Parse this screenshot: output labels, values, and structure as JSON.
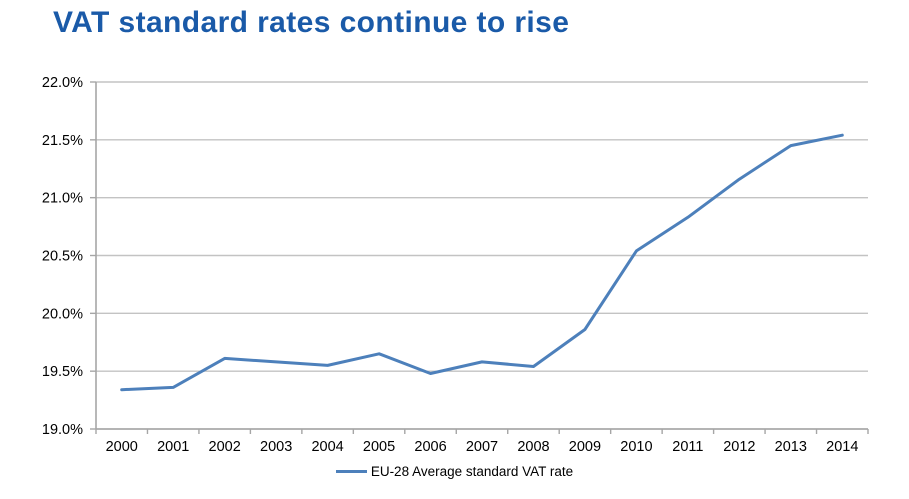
{
  "page": {
    "title": "VAT standard rates continue to rise"
  },
  "colors": {
    "title": "#1a5aa8",
    "line": "#4d80bb",
    "gridline": "#c3c3c3",
    "axis": "#a6a6a6",
    "tick_label": "#000000"
  },
  "chart_data": {
    "type": "line",
    "title": "VAT standard rates continue to rise",
    "categories": [
      "2000",
      "2001",
      "2002",
      "2003",
      "2004",
      "2005",
      "2006",
      "2007",
      "2008",
      "2009",
      "2010",
      "2011",
      "2012",
      "2013",
      "2014"
    ],
    "series": [
      {
        "name": "EU-28 Average standard VAT rate",
        "color": "#4d80bb",
        "values": [
          19.34,
          19.36,
          19.61,
          19.58,
          19.55,
          19.65,
          19.48,
          19.58,
          19.54,
          19.86,
          20.54,
          20.83,
          21.16,
          21.45,
          21.54
        ]
      }
    ],
    "xlabel": "",
    "ylabel": "",
    "ylim": [
      19.0,
      22.0
    ],
    "yticks": [
      {
        "value": 19.0,
        "label": "19.0%"
      },
      {
        "value": 19.5,
        "label": "19.5%"
      },
      {
        "value": 20.0,
        "label": "20.0%"
      },
      {
        "value": 20.5,
        "label": "20.5%"
      },
      {
        "value": 21.0,
        "label": "21.0%"
      },
      {
        "value": 21.5,
        "label": "21.5%"
      },
      {
        "value": 22.0,
        "label": "22.0%"
      }
    ],
    "grid": true,
    "legend_position": "bottom-center"
  }
}
